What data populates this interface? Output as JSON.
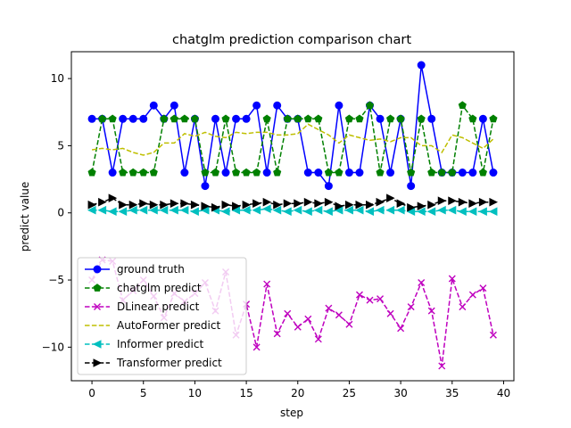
{
  "chart_data": {
    "type": "line",
    "title": "chatglm prediction comparison chart",
    "xlabel": "step",
    "ylabel": "predict value",
    "xlim": [
      -2,
      41
    ],
    "ylim": [
      -12.5,
      12
    ],
    "xticks": [
      0,
      5,
      10,
      15,
      20,
      25,
      30,
      35,
      40
    ],
    "yticks": [
      -10,
      -5,
      0,
      5,
      10
    ],
    "grid": false,
    "legend_position": "lower-left",
    "x": [
      0,
      1,
      2,
      3,
      4,
      5,
      6,
      7,
      8,
      9,
      10,
      11,
      12,
      13,
      14,
      15,
      16,
      17,
      18,
      19,
      20,
      21,
      22,
      23,
      24,
      25,
      26,
      27,
      28,
      29,
      30,
      31,
      32,
      33,
      34,
      35,
      36,
      37,
      38,
      39
    ],
    "series": [
      {
        "name": "ground truth",
        "color": "#0000ff",
        "linestyle": "solid",
        "marker": "circle",
        "values": [
          7,
          7,
          3,
          7,
          7,
          7,
          8,
          7,
          8,
          3,
          7,
          2,
          7,
          3,
          7,
          7,
          8,
          3,
          8,
          7,
          7,
          3,
          3,
          2,
          8,
          3,
          3,
          8,
          7,
          3,
          7,
          2,
          11,
          7,
          3,
          3,
          3,
          3,
          7,
          3
        ]
      },
      {
        "name": "chatglm predict",
        "color": "#008000",
        "linestyle": "dashed",
        "marker": "pentagon",
        "values": [
          3,
          7,
          7,
          3,
          3,
          3,
          3,
          7,
          7,
          7,
          7,
          3,
          3,
          7,
          3,
          3,
          3,
          7,
          3,
          7,
          7,
          7,
          7,
          3,
          3,
          7,
          7,
          8,
          3,
          7,
          7,
          3,
          7,
          3,
          3,
          3,
          8,
          7,
          3,
          7
        ]
      },
      {
        "name": "DLinear predict",
        "color": "#bf00bf",
        "linestyle": "dashed",
        "marker": "x",
        "values": [
          -5.0,
          -3.5,
          -3.6,
          -6.5,
          -5.8,
          -5.0,
          -6.2,
          -7.8,
          -6.0,
          -6.6,
          -6.0,
          -5.2,
          -7.3,
          -4.4,
          -9.1,
          -6.8,
          -10.0,
          -5.3,
          -9.0,
          -7.5,
          -8.5,
          -7.9,
          -9.4,
          -7.1,
          -7.6,
          -8.3,
          -6.1,
          -6.5,
          -6.4,
          -7.5,
          -8.6,
          -7.0,
          -5.2,
          -7.3,
          -11.4,
          -4.9,
          -7.0,
          -6.1,
          -5.6,
          -9.1
        ]
      },
      {
        "name": "AutoFormer predict",
        "color": "#bfbf00",
        "linestyle": "dashed",
        "marker": "none",
        "values": [
          4.7,
          4.8,
          4.7,
          4.8,
          4.5,
          4.3,
          4.5,
          5.2,
          5.2,
          5.9,
          5.7,
          6.0,
          5.7,
          5.6,
          6.0,
          5.9,
          6.0,
          6.0,
          5.8,
          5.8,
          5.9,
          6.6,
          6.2,
          5.8,
          5.2,
          5.8,
          5.6,
          5.4,
          5.5,
          5.3,
          5.6,
          5.6,
          5.0,
          5.0,
          4.5,
          5.8,
          5.6,
          5.2,
          4.8,
          5.5
        ]
      },
      {
        "name": "Informer predict",
        "color": "#00bfbf",
        "linestyle": "dashed",
        "marker": "triangle-left",
        "values": [
          0.2,
          0.2,
          0.1,
          0.1,
          0.2,
          0.2,
          0.2,
          0.2,
          0.2,
          0.2,
          0.1,
          0.2,
          0.2,
          0.1,
          0.2,
          0.2,
          0.2,
          0.3,
          0.2,
          0.1,
          0.2,
          0.1,
          0.2,
          0.1,
          0.2,
          0.2,
          0.2,
          0.1,
          0.2,
          0.2,
          0.2,
          0.1,
          0.1,
          0.1,
          0.2,
          0.2,
          0.1,
          0.1,
          0.1,
          0.1
        ]
      },
      {
        "name": "Transformer predict",
        "color": "#000000",
        "linestyle": "dashed",
        "marker": "triangle-right",
        "values": [
          0.6,
          0.8,
          1.1,
          0.6,
          0.6,
          0.7,
          0.6,
          0.6,
          0.7,
          0.7,
          0.6,
          0.5,
          0.4,
          0.6,
          0.5,
          0.6,
          0.7,
          0.8,
          0.6,
          0.7,
          0.7,
          0.8,
          0.7,
          0.8,
          0.5,
          0.6,
          0.6,
          0.6,
          0.8,
          1.1,
          0.7,
          0.4,
          0.5,
          0.6,
          0.9,
          0.9,
          0.8,
          0.7,
          0.8,
          0.8
        ]
      }
    ]
  }
}
